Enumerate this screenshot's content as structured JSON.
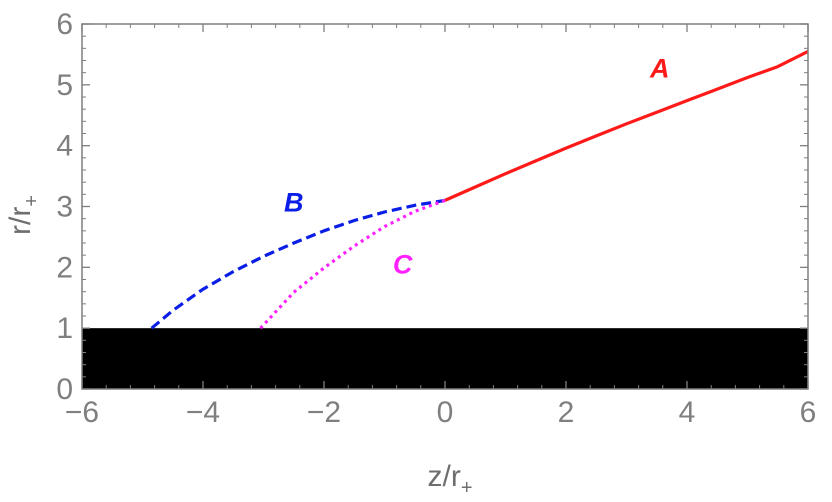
{
  "chart_data": {
    "type": "line",
    "title": "",
    "xlabel": "z/r",
    "xlabel_sub": "+",
    "ylabel": "r/r",
    "ylabel_sub": "+",
    "xlim": [
      -6,
      6
    ],
    "ylim": [
      0,
      6
    ],
    "xticks": [
      -6,
      -4,
      -2,
      0,
      2,
      4,
      6
    ],
    "yticks": [
      0,
      1,
      2,
      3,
      4,
      5,
      6
    ],
    "xtick_labels": [
      "−6",
      "−4",
      "−2",
      "0",
      "2",
      "4",
      "6"
    ],
    "ytick_labels": [
      "0",
      "1",
      "2",
      "3",
      "4",
      "5",
      "6"
    ],
    "grid": false,
    "shaded_region": {
      "x": [
        -6,
        6
      ],
      "y": [
        0,
        1
      ],
      "color": "#000000"
    },
    "series": [
      {
        "name": "A",
        "color": "#ff1a1a",
        "style": "solid",
        "x": [
          0,
          0.5,
          1,
          1.5,
          2,
          2.5,
          3,
          3.5,
          4,
          4.5,
          5,
          5.5,
          6
        ],
        "y": [
          3.1,
          3.32,
          3.54,
          3.75,
          3.96,
          4.16,
          4.36,
          4.55,
          4.74,
          4.93,
          5.12,
          5.3,
          5.55
        ]
      },
      {
        "name": "B",
        "color": "#0a1ee6",
        "style": "dashed",
        "x": [
          -4.85,
          -4.5,
          -4,
          -3.5,
          -3,
          -2.5,
          -2,
          -1.5,
          -1,
          -0.5,
          0
        ],
        "y": [
          1.0,
          1.29,
          1.64,
          1.93,
          2.18,
          2.4,
          2.6,
          2.77,
          2.91,
          3.02,
          3.1
        ]
      },
      {
        "name": "C",
        "color": "#ff22ff",
        "style": "dotted",
        "x": [
          -3.05,
          -2.5,
          -2,
          -1.5,
          -1,
          -0.5,
          0
        ],
        "y": [
          1.0,
          1.59,
          1.99,
          2.35,
          2.67,
          2.92,
          3.1
        ]
      }
    ],
    "annotations": [
      {
        "text": "A",
        "x": 3.55,
        "y": 5.12,
        "color": "#ff1a1a"
      },
      {
        "text": "B",
        "x": -2.5,
        "y": 2.92,
        "color": "#0a1ee6"
      },
      {
        "text": "C",
        "x": -0.7,
        "y": 1.9,
        "color": "#ff22ff"
      }
    ],
    "colors": {
      "frame": "#7f7f7f",
      "tick_label": "#7f7f7f",
      "axis_label": "#6e6e6e"
    }
  }
}
